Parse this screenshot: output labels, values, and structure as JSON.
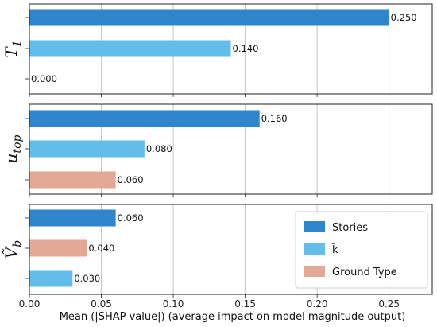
{
  "chart_data": {
    "type": "bar",
    "orientation": "horizontal",
    "xlabel": "Mean (|SHAP value|) (average impact on model magnitude output)",
    "xlim": [
      0,
      0.28
    ],
    "xticks": [
      0.0,
      0.05,
      0.1,
      0.15,
      0.2,
      0.25
    ],
    "xtick_labels": [
      "0.00",
      "0.05",
      "0.10",
      "0.15",
      "0.20",
      "0.25"
    ],
    "grid": "vertical",
    "legend": {
      "placement": "lower-right",
      "entries": [
        {
          "label": "Stories",
          "color": "#2f86cc"
        },
        {
          "label": "k̃",
          "color": "#62bdea"
        },
        {
          "label": "Ground Type",
          "color": "#e4a896"
        }
      ]
    },
    "panels": [
      {
        "ylabel_main": "T",
        "ylabel_sub": "1",
        "bars": [
          {
            "series": "Stories",
            "value": 0.25,
            "label": "0.250"
          },
          {
            "series": "k̃",
            "value": 0.14,
            "label": "0.140"
          },
          {
            "series": "Ground Type",
            "value": 0.0,
            "label": "0.000"
          }
        ]
      },
      {
        "ylabel_main": "u",
        "ylabel_sub": "top",
        "bars": [
          {
            "series": "Stories",
            "value": 0.16,
            "label": "0.160"
          },
          {
            "series": "k̃",
            "value": 0.08,
            "label": "0.080"
          },
          {
            "series": "Ground Type",
            "value": 0.06,
            "label": "0.060"
          }
        ]
      },
      {
        "ylabel_main": "Ṽ",
        "ylabel_sub": "b",
        "bars": [
          {
            "series": "Stories",
            "value": 0.06,
            "label": "0.060"
          },
          {
            "series": "Ground Type",
            "value": 0.04,
            "label": "0.040"
          },
          {
            "series": "k̃",
            "value": 0.03,
            "label": "0.030"
          }
        ]
      }
    ]
  }
}
